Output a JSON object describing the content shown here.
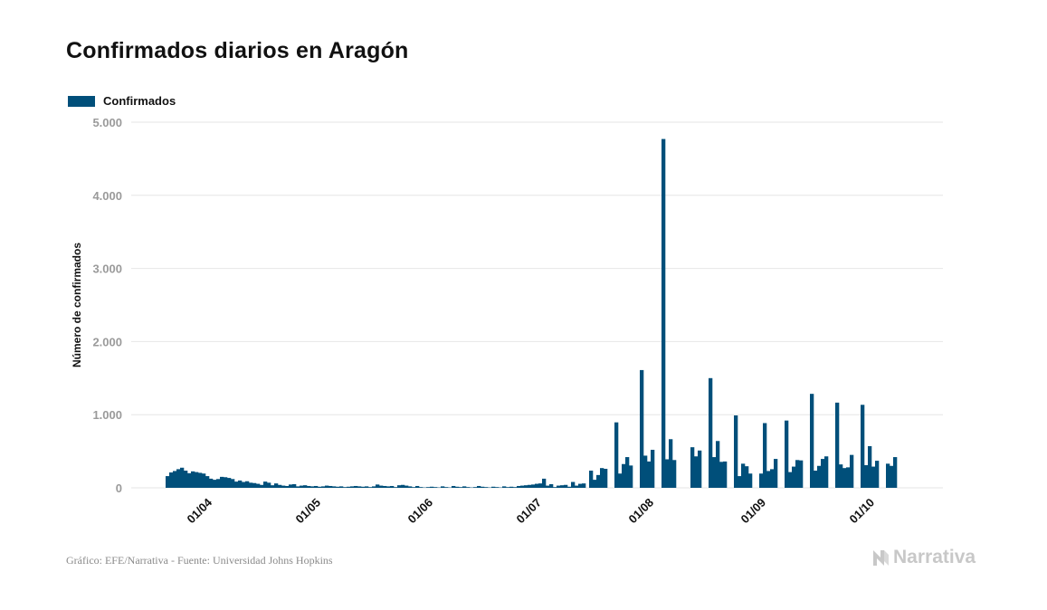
{
  "title": "Confirmados diarios en Aragón",
  "footer": "Gráfico: EFE/Narrativa - Fuente: Universidad Johns Hopkins",
  "brand": "Narrativa",
  "colors": {
    "bar": "#004f7a",
    "grid": "#e6e6e6",
    "tick_label": "#9a9a9a",
    "axis_label": "#111111"
  },
  "chart_data": {
    "type": "bar",
    "title": "Confirmados diarios en Aragón",
    "ylabel": "Número de confirmados",
    "xlabel": "",
    "ylim": [
      0,
      5000
    ],
    "yticks": [
      0,
      1000,
      2000,
      3000,
      4000,
      5000
    ],
    "ytick_labels": [
      "0",
      "1.000",
      "2.000",
      "3.000",
      "4.000",
      "5.000"
    ],
    "x_range": [
      "2020-03-21",
      "2020-10-07"
    ],
    "xticks": [
      {
        "date": "2020-04-01",
        "label": "01/04"
      },
      {
        "date": "2020-05-01",
        "label": "01/05"
      },
      {
        "date": "2020-06-01",
        "label": "01/06"
      },
      {
        "date": "2020-07-01",
        "label": "01/07"
      },
      {
        "date": "2020-08-01",
        "label": "01/08"
      },
      {
        "date": "2020-09-01",
        "label": "01/09"
      },
      {
        "date": "2020-10-01",
        "label": "01/10"
      }
    ],
    "grid": true,
    "legend": {
      "position": "top-left"
    },
    "series": [
      {
        "name": "Confirmados",
        "points": [
          [
            "2020-03-21",
            160
          ],
          [
            "2020-03-22",
            210
          ],
          [
            "2020-03-23",
            230
          ],
          [
            "2020-03-24",
            255
          ],
          [
            "2020-03-25",
            275
          ],
          [
            "2020-03-26",
            235
          ],
          [
            "2020-03-27",
            200
          ],
          [
            "2020-03-28",
            225
          ],
          [
            "2020-03-29",
            215
          ],
          [
            "2020-03-30",
            205
          ],
          [
            "2020-03-31",
            195
          ],
          [
            "2020-04-01",
            160
          ],
          [
            "2020-04-02",
            125
          ],
          [
            "2020-04-03",
            110
          ],
          [
            "2020-04-04",
            120
          ],
          [
            "2020-04-05",
            150
          ],
          [
            "2020-04-06",
            145
          ],
          [
            "2020-04-07",
            135
          ],
          [
            "2020-04-08",
            120
          ],
          [
            "2020-04-09",
            85
          ],
          [
            "2020-04-10",
            100
          ],
          [
            "2020-04-11",
            80
          ],
          [
            "2020-04-12",
            90
          ],
          [
            "2020-04-13",
            70
          ],
          [
            "2020-04-14",
            65
          ],
          [
            "2020-04-15",
            55
          ],
          [
            "2020-04-16",
            40
          ],
          [
            "2020-04-17",
            85
          ],
          [
            "2020-04-18",
            70
          ],
          [
            "2020-04-19",
            35
          ],
          [
            "2020-04-20",
            60
          ],
          [
            "2020-04-21",
            40
          ],
          [
            "2020-04-22",
            30
          ],
          [
            "2020-04-23",
            25
          ],
          [
            "2020-04-24",
            45
          ],
          [
            "2020-04-25",
            50
          ],
          [
            "2020-04-26",
            20
          ],
          [
            "2020-04-27",
            30
          ],
          [
            "2020-04-28",
            35
          ],
          [
            "2020-04-29",
            25
          ],
          [
            "2020-04-30",
            20
          ],
          [
            "2020-05-01",
            25
          ],
          [
            "2020-05-02",
            15
          ],
          [
            "2020-05-03",
            20
          ],
          [
            "2020-05-04",
            30
          ],
          [
            "2020-05-05",
            25
          ],
          [
            "2020-05-06",
            20
          ],
          [
            "2020-05-07",
            15
          ],
          [
            "2020-05-08",
            20
          ],
          [
            "2020-05-09",
            10
          ],
          [
            "2020-05-10",
            15
          ],
          [
            "2020-05-11",
            20
          ],
          [
            "2020-05-12",
            25
          ],
          [
            "2020-05-13",
            20
          ],
          [
            "2020-05-14",
            15
          ],
          [
            "2020-05-15",
            20
          ],
          [
            "2020-05-16",
            10
          ],
          [
            "2020-05-17",
            20
          ],
          [
            "2020-05-18",
            45
          ],
          [
            "2020-05-19",
            30
          ],
          [
            "2020-05-20",
            25
          ],
          [
            "2020-05-21",
            20
          ],
          [
            "2020-05-22",
            25
          ],
          [
            "2020-05-23",
            10
          ],
          [
            "2020-05-24",
            35
          ],
          [
            "2020-05-25",
            40
          ],
          [
            "2020-05-26",
            30
          ],
          [
            "2020-05-27",
            20
          ],
          [
            "2020-05-28",
            10
          ],
          [
            "2020-05-29",
            25
          ],
          [
            "2020-05-30",
            10
          ],
          [
            "2020-05-31",
            5
          ],
          [
            "2020-06-01",
            10
          ],
          [
            "2020-06-02",
            15
          ],
          [
            "2020-06-03",
            10
          ],
          [
            "2020-06-04",
            5
          ],
          [
            "2020-06-05",
            20
          ],
          [
            "2020-06-06",
            10
          ],
          [
            "2020-06-07",
            5
          ],
          [
            "2020-06-08",
            25
          ],
          [
            "2020-06-09",
            15
          ],
          [
            "2020-06-10",
            10
          ],
          [
            "2020-06-11",
            20
          ],
          [
            "2020-06-12",
            10
          ],
          [
            "2020-06-13",
            5
          ],
          [
            "2020-06-14",
            10
          ],
          [
            "2020-06-15",
            25
          ],
          [
            "2020-06-16",
            15
          ],
          [
            "2020-06-17",
            10
          ],
          [
            "2020-06-18",
            5
          ],
          [
            "2020-06-19",
            15
          ],
          [
            "2020-06-20",
            10
          ],
          [
            "2020-06-21",
            5
          ],
          [
            "2020-06-22",
            20
          ],
          [
            "2020-06-23",
            10
          ],
          [
            "2020-06-24",
            15
          ],
          [
            "2020-06-25",
            10
          ],
          [
            "2020-06-26",
            25
          ],
          [
            "2020-06-27",
            30
          ],
          [
            "2020-06-28",
            35
          ],
          [
            "2020-06-29",
            40
          ],
          [
            "2020-06-30",
            45
          ],
          [
            "2020-07-01",
            55
          ],
          [
            "2020-07-02",
            60
          ],
          [
            "2020-07-03",
            125
          ],
          [
            "2020-07-04",
            30
          ],
          [
            "2020-07-05",
            50
          ],
          [
            "2020-07-06",
            10
          ],
          [
            "2020-07-07",
            30
          ],
          [
            "2020-07-08",
            35
          ],
          [
            "2020-07-09",
            40
          ],
          [
            "2020-07-10",
            15
          ],
          [
            "2020-07-11",
            80
          ],
          [
            "2020-07-12",
            30
          ],
          [
            "2020-07-13",
            55
          ],
          [
            "2020-07-14",
            60
          ],
          [
            "2020-07-16",
            235
          ],
          [
            "2020-07-17",
            110
          ],
          [
            "2020-07-18",
            175
          ],
          [
            "2020-07-19",
            270
          ],
          [
            "2020-07-20",
            260
          ],
          [
            "2020-07-23",
            895
          ],
          [
            "2020-07-24",
            195
          ],
          [
            "2020-07-25",
            325
          ],
          [
            "2020-07-26",
            420
          ],
          [
            "2020-07-27",
            305
          ],
          [
            "2020-07-30",
            1610
          ],
          [
            "2020-07-31",
            440
          ],
          [
            "2020-08-01",
            360
          ],
          [
            "2020-08-02",
            520
          ],
          [
            "2020-08-05",
            4770
          ],
          [
            "2020-08-06",
            390
          ],
          [
            "2020-08-07",
            665
          ],
          [
            "2020-08-08",
            380
          ],
          [
            "2020-08-13",
            555
          ],
          [
            "2020-08-14",
            430
          ],
          [
            "2020-08-15",
            510
          ],
          [
            "2020-08-18",
            1500
          ],
          [
            "2020-08-19",
            420
          ],
          [
            "2020-08-20",
            640
          ],
          [
            "2020-08-21",
            355
          ],
          [
            "2020-08-22",
            360
          ],
          [
            "2020-08-25",
            990
          ],
          [
            "2020-08-26",
            160
          ],
          [
            "2020-08-27",
            330
          ],
          [
            "2020-08-28",
            295
          ],
          [
            "2020-08-29",
            195
          ],
          [
            "2020-09-01",
            195
          ],
          [
            "2020-09-02",
            885
          ],
          [
            "2020-09-03",
            230
          ],
          [
            "2020-09-04",
            255
          ],
          [
            "2020-09-05",
            395
          ],
          [
            "2020-09-08",
            920
          ],
          [
            "2020-09-09",
            215
          ],
          [
            "2020-09-10",
            290
          ],
          [
            "2020-09-11",
            380
          ],
          [
            "2020-09-12",
            375
          ],
          [
            "2020-09-15",
            1285
          ],
          [
            "2020-09-16",
            235
          ],
          [
            "2020-09-17",
            300
          ],
          [
            "2020-09-18",
            395
          ],
          [
            "2020-09-19",
            430
          ],
          [
            "2020-09-22",
            1165
          ],
          [
            "2020-09-23",
            320
          ],
          [
            "2020-09-24",
            270
          ],
          [
            "2020-09-25",
            280
          ],
          [
            "2020-09-26",
            450
          ],
          [
            "2020-09-29",
            1135
          ],
          [
            "2020-09-30",
            310
          ],
          [
            "2020-10-01",
            570
          ],
          [
            "2020-10-02",
            290
          ],
          [
            "2020-10-03",
            370
          ],
          [
            "2020-10-06",
            330
          ],
          [
            "2020-10-07",
            300
          ],
          [
            "2020-10-08",
            420
          ]
        ]
      }
    ]
  }
}
